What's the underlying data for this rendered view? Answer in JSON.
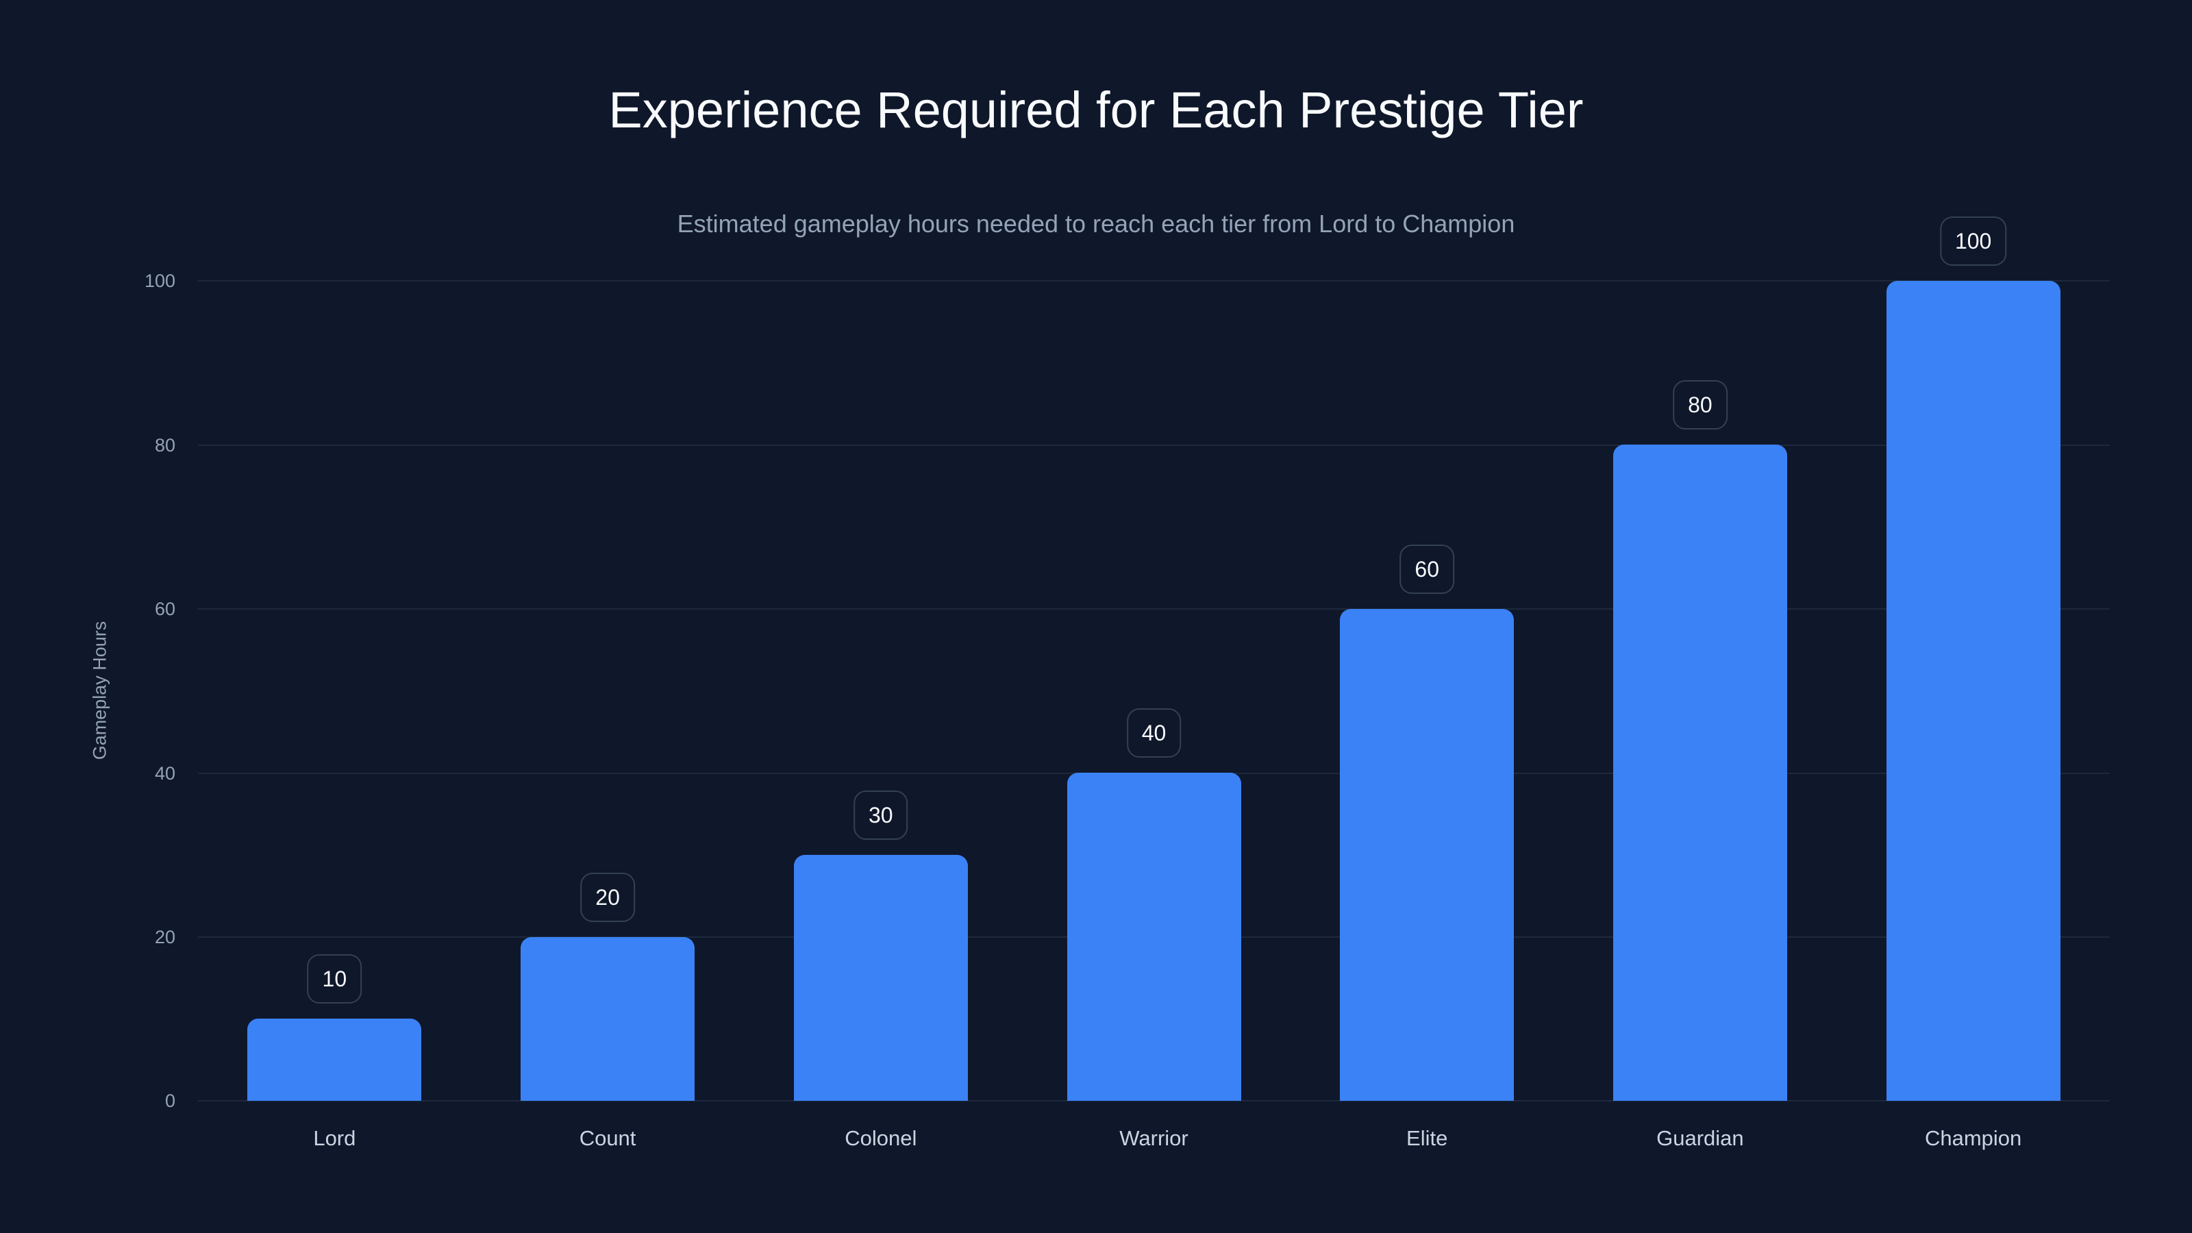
{
  "header": {
    "title": "Experience Required for Each Prestige Tier",
    "subtitle": "Estimated gameplay hours needed to reach each tier from Lord to Champion"
  },
  "axes": {
    "ylabel": "Gameplay Hours",
    "yticks": [
      "0",
      "20",
      "40",
      "60",
      "80",
      "100"
    ]
  },
  "colors": {
    "bar": "#3b82f6",
    "background": "#0f172a",
    "grid": "#1e293b"
  },
  "bars": [
    {
      "label": "Lord",
      "value": 10,
      "value_label": "10"
    },
    {
      "label": "Count",
      "value": 20,
      "value_label": "20"
    },
    {
      "label": "Colonel",
      "value": 30,
      "value_label": "30"
    },
    {
      "label": "Warrior",
      "value": 40,
      "value_label": "40"
    },
    {
      "label": "Elite",
      "value": 60,
      "value_label": "60"
    },
    {
      "label": "Guardian",
      "value": 80,
      "value_label": "80"
    },
    {
      "label": "Champion",
      "value": 100,
      "value_label": "100"
    }
  ],
  "chart_data": {
    "type": "bar",
    "title": "Experience Required for Each Prestige Tier",
    "subtitle": "Estimated gameplay hours needed to reach each tier from Lord to Champion",
    "categories": [
      "Lord",
      "Count",
      "Colonel",
      "Warrior",
      "Elite",
      "Guardian",
      "Champion"
    ],
    "values": [
      10,
      20,
      30,
      40,
      60,
      80,
      100
    ],
    "xlabel": "",
    "ylabel": "Gameplay Hours",
    "ylim": [
      0,
      100
    ],
    "yticks": [
      0,
      20,
      40,
      60,
      80,
      100
    ],
    "grid": true,
    "data_labels": true,
    "legend": null
  }
}
